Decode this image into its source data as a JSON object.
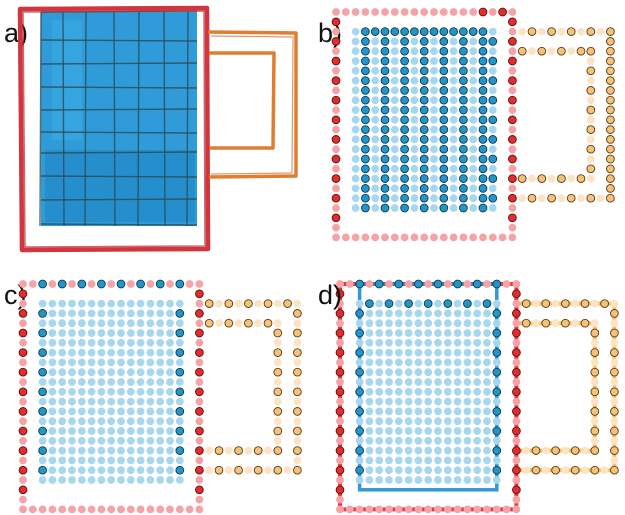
{
  "panels": [
    {
      "label": "a)",
      "style": "hand-drawn sketch"
    },
    {
      "label": "b)",
      "style": "dot grid"
    },
    {
      "label": "c)",
      "style": "dot grid"
    },
    {
      "label": "d)",
      "style": "dot grid with traced outlines"
    }
  ],
  "colors": {
    "glass_fill": "#1f95d6",
    "glass_grid_line": "#2c4a55",
    "outer_frame": "#d3353f",
    "handle": "#e07d2e",
    "dot_red_solid": "#e52b2b",
    "dot_red_faint": "#f5a3a6",
    "dot_blue_solid": "#2196c9",
    "dot_blue_faint": "#a7d7ef",
    "dot_orange_solid": "#f5c27a",
    "dot_orange_faint": "#fbe3c3",
    "outline_red": "#e8202a",
    "outline_blue": "#1c8ed0",
    "outline_orange": "#f7b346"
  }
}
